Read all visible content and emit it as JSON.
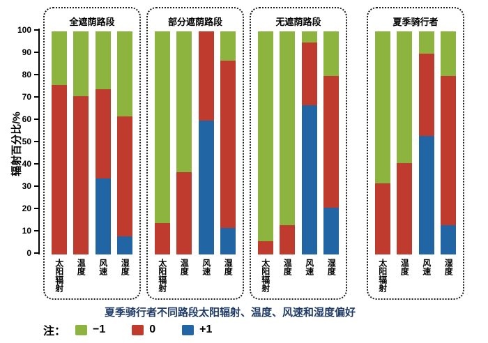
{
  "chart_data": {
    "type": "bar",
    "stacked": true,
    "orientation": "vertical",
    "ylabel": "辐射百分比/%",
    "ylim": [
      0,
      100
    ],
    "yticks": [
      0,
      10,
      20,
      30,
      40,
      50,
      60,
      70,
      80,
      90,
      100
    ],
    "grid": false,
    "legend_position": "bottom",
    "legend_prefix": "注：",
    "legend": [
      {
        "label": "−1",
        "color": "#8cb43f"
      },
      {
        "label": "0",
        "color": "#be3b2e"
      },
      {
        "label": "+1",
        "color": "#2265a5"
      }
    ],
    "series": [
      {
        "name": "−1",
        "key": "minus1",
        "color": "#8cb43f"
      },
      {
        "name": "0",
        "key": "zero",
        "color": "#be3b2e"
      },
      {
        "name": "+1",
        "key": "plus1",
        "color": "#2265a5"
      }
    ],
    "groups": [
      {
        "title": "全遮荫路段",
        "bars": [
          {
            "label": "太阳辐射",
            "minus1": 24,
            "zero": 76,
            "plus1": 0
          },
          {
            "label": "温度",
            "minus1": 29,
            "zero": 71,
            "plus1": 0
          },
          {
            "label": "风速",
            "minus1": 26,
            "zero": 40,
            "plus1": 34
          },
          {
            "label": "湿度",
            "minus1": 38,
            "zero": 54,
            "plus1": 8
          }
        ]
      },
      {
        "title": "部分遮荫路段",
        "bars": [
          {
            "label": "太阳辐射",
            "minus1": 86,
            "zero": 14,
            "plus1": 0
          },
          {
            "label": "温度",
            "minus1": 63,
            "zero": 37,
            "plus1": 0
          },
          {
            "label": "风速",
            "minus1": 0,
            "zero": 40,
            "plus1": 60
          },
          {
            "label": "湿度",
            "minus1": 13,
            "zero": 75,
            "plus1": 12
          }
        ]
      },
      {
        "title": "无遮荫路段",
        "bars": [
          {
            "label": "太阳辐射",
            "minus1": 94,
            "zero": 6,
            "plus1": 0
          },
          {
            "label": "温度",
            "minus1": 87,
            "zero": 13,
            "plus1": 0
          },
          {
            "label": "风速",
            "minus1": 5,
            "zero": 28,
            "plus1": 67
          },
          {
            "label": "湿度",
            "minus1": 20,
            "zero": 59,
            "plus1": 21
          }
        ]
      },
      {
        "title": "夏季骑行者",
        "bars": [
          {
            "label": "太阳辐射",
            "minus1": 68,
            "zero": 32,
            "plus1": 0
          },
          {
            "label": "温度",
            "minus1": 59,
            "zero": 41,
            "plus1": 0
          },
          {
            "label": "风速",
            "minus1": 10,
            "zero": 37,
            "plus1": 53
          },
          {
            "label": "湿度",
            "minus1": 20,
            "zero": 67,
            "plus1": 13
          }
        ]
      }
    ],
    "caption": "夏季骑行者不同路段太阳辐射、温度、风速和湿度偏好"
  }
}
